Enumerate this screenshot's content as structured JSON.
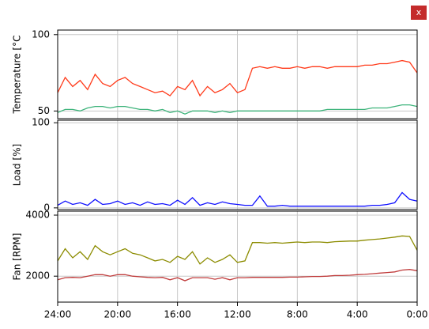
{
  "window": {
    "close_button": "x"
  },
  "chart_data": [
    {
      "type": "line",
      "ylabel": "Temperature [°C",
      "x": [
        24,
        23.5,
        23,
        22.5,
        22,
        21.5,
        21,
        20.5,
        20,
        19.5,
        19,
        18.5,
        18,
        17.5,
        17,
        16.5,
        16,
        15.5,
        15,
        14.5,
        14,
        13.5,
        13,
        12.5,
        12,
        11.5,
        11,
        10.5,
        10,
        9.5,
        9,
        8.5,
        8,
        7.5,
        7,
        6.5,
        6,
        5.5,
        5,
        4.5,
        4,
        3.5,
        3,
        2.5,
        2,
        1.5,
        1,
        0.5,
        0
      ],
      "xlim": [
        24,
        0
      ],
      "ylim": [
        45,
        103
      ],
      "yticks": [
        50,
        100
      ],
      "grid": true,
      "series": [
        {
          "color": "#ff3a1a",
          "values": [
            62,
            72,
            66,
            70,
            64,
            74,
            68,
            66,
            70,
            72,
            68,
            66,
            64,
            62,
            63,
            60,
            66,
            64,
            70,
            60,
            66,
            62,
            64,
            68,
            62,
            64,
            78,
            79,
            78,
            79,
            78,
            78,
            79,
            78,
            79,
            79,
            78,
            79,
            79,
            79,
            79,
            80,
            80,
            81,
            81,
            82,
            83,
            82,
            75
          ]
        },
        {
          "color": "#3cb37a",
          "values": [
            49,
            51,
            51,
            50,
            52,
            53,
            53,
            52,
            53,
            53,
            52,
            51,
            51,
            50,
            51,
            49,
            50,
            48,
            50,
            50,
            50,
            49,
            50,
            49,
            50,
            50,
            50,
            50,
            50,
            50,
            50,
            50,
            50,
            50,
            50,
            50,
            51,
            51,
            51,
            51,
            51,
            51,
            52,
            52,
            52,
            53,
            54,
            54,
            53
          ]
        }
      ]
    },
    {
      "type": "line",
      "ylabel": "Load [%]",
      "x": [
        24,
        23.5,
        23,
        22.5,
        22,
        21.5,
        21,
        20.5,
        20,
        19.5,
        19,
        18.5,
        18,
        17.5,
        17,
        16.5,
        16,
        15.5,
        15,
        14.5,
        14,
        13.5,
        13,
        12.5,
        12,
        11.5,
        11,
        10.5,
        10,
        9.5,
        9,
        8.5,
        8,
        7.5,
        7,
        6.5,
        6,
        5.5,
        5,
        4.5,
        4,
        3.5,
        3,
        2.5,
        2,
        1.5,
        1,
        0.5,
        0
      ],
      "xlim": [
        24,
        0
      ],
      "ylim": [
        -2,
        103
      ],
      "yticks": [
        0,
        100
      ],
      "grid": true,
      "series": [
        {
          "color": "#1010ff",
          "values": [
            3,
            8,
            4,
            6,
            3,
            10,
            4,
            5,
            8,
            4,
            6,
            3,
            7,
            4,
            5,
            3,
            9,
            4,
            12,
            3,
            6,
            4,
            7,
            5,
            4,
            3,
            3,
            14,
            2,
            2,
            3,
            2,
            2,
            2,
            2,
            2,
            2,
            2,
            2,
            2,
            2,
            2,
            3,
            3,
            4,
            6,
            18,
            10,
            8
          ]
        }
      ]
    },
    {
      "type": "line",
      "ylabel": "Fan [RPM]",
      "x": [
        24,
        23.5,
        23,
        22.5,
        22,
        21.5,
        21,
        20.5,
        20,
        19.5,
        19,
        18.5,
        18,
        17.5,
        17,
        16.5,
        16,
        15.5,
        15,
        14.5,
        14,
        13.5,
        13,
        12.5,
        12,
        11.5,
        11,
        10.5,
        10,
        9.5,
        9,
        8.5,
        8,
        7.5,
        7,
        6.5,
        6,
        5.5,
        5,
        4.5,
        4,
        3.5,
        3,
        2.5,
        2,
        1.5,
        1,
        0.5,
        0
      ],
      "xlim": [
        24,
        0
      ],
      "ylim": [
        1150,
        4130
      ],
      "yticks": [
        2000,
        4000
      ],
      "grid": true,
      "xticks": [
        {
          "value": 24,
          "label": "24:00"
        },
        {
          "value": 20,
          "label": "20:00"
        },
        {
          "value": 16,
          "label": "16:00"
        },
        {
          "value": 12,
          "label": "12:00"
        },
        {
          "value": 8,
          "label": "8:00"
        },
        {
          "value": 4,
          "label": "4:00"
        },
        {
          "value": 0,
          "label": "0:00"
        }
      ],
      "series": [
        {
          "color": "#8c8c00",
          "values": [
            2500,
            2900,
            2600,
            2800,
            2550,
            3000,
            2800,
            2700,
            2800,
            2900,
            2750,
            2700,
            2600,
            2500,
            2550,
            2450,
            2650,
            2550,
            2800,
            2400,
            2600,
            2450,
            2550,
            2700,
            2450,
            2500,
            3100,
            3100,
            3080,
            3100,
            3080,
            3100,
            3120,
            3100,
            3120,
            3120,
            3100,
            3130,
            3140,
            3150,
            3150,
            3180,
            3200,
            3220,
            3250,
            3280,
            3320,
            3300,
            2850
          ]
        },
        {
          "color": "#c03c3c",
          "values": [
            1880,
            1950,
            1960,
            1950,
            2000,
            2050,
            2050,
            2000,
            2050,
            2050,
            2000,
            1980,
            1960,
            1950,
            1960,
            1880,
            1950,
            1850,
            1950,
            1950,
            1950,
            1900,
            1950,
            1880,
            1950,
            1950,
            1960,
            1960,
            1960,
            1960,
            1960,
            1970,
            1970,
            1980,
            1990,
            1990,
            2000,
            2020,
            2020,
            2030,
            2050,
            2060,
            2080,
            2100,
            2120,
            2140,
            2200,
            2220,
            2180
          ]
        }
      ]
    }
  ]
}
